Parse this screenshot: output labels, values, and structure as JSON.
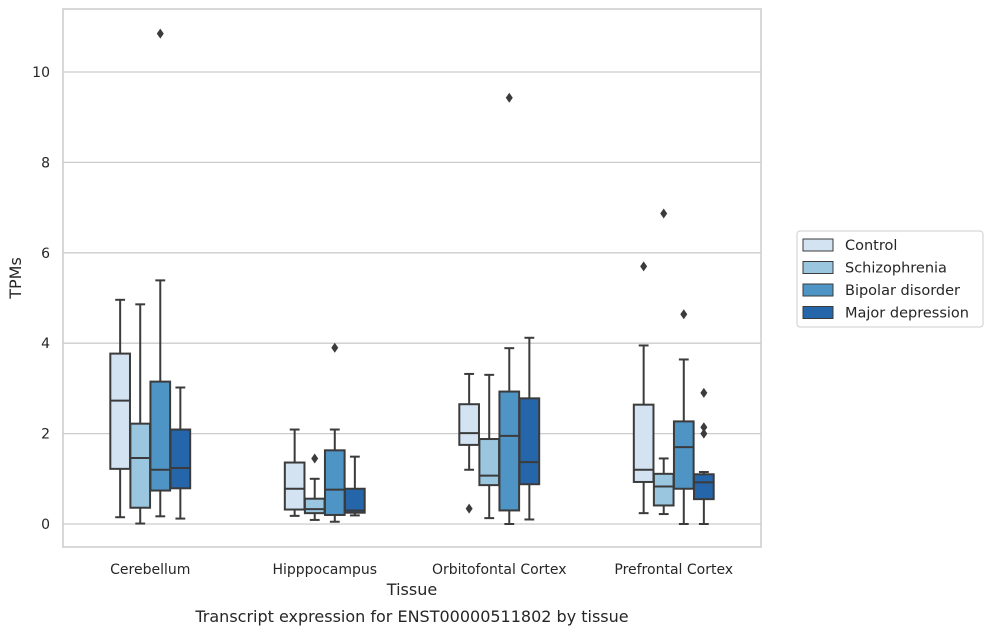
{
  "chart_data": {
    "type": "box",
    "caption": "Transcript expression for ENST00000511802 by tissue",
    "xlabel": "Tissue",
    "ylabel": "TPMs",
    "ylim": [
      -0.5,
      11.35
    ],
    "yticks": [
      0,
      2,
      4,
      6,
      8,
      10
    ],
    "grid": "y",
    "legend_position": "right",
    "categories": [
      "Cerebellum",
      "Hipppocampus",
      "Orbitofontal Cortex",
      "Prefrontal Cortex"
    ],
    "series": [
      {
        "name": "Control",
        "color": "#d3e3f2",
        "boxes": [
          {
            "whislo": 0.15,
            "q1": 1.22,
            "med": 2.73,
            "q3": 3.77,
            "whishi": 4.96,
            "fliers": []
          },
          {
            "whislo": 0.18,
            "q1": 0.32,
            "med": 0.78,
            "q3": 1.36,
            "whishi": 2.09,
            "fliers": []
          },
          {
            "whislo": 1.2,
            "q1": 1.75,
            "med": 2.01,
            "q3": 2.65,
            "whishi": 3.32,
            "fliers": [
              0.34
            ]
          },
          {
            "whislo": 0.24,
            "q1": 0.93,
            "med": 1.2,
            "q3": 2.64,
            "whishi": 3.95,
            "fliers": [
              5.7
            ]
          }
        ]
      },
      {
        "name": "Schizophrenia",
        "color": "#9ac6e0",
        "boxes": [
          {
            "whislo": 0.01,
            "q1": 0.36,
            "med": 1.46,
            "q3": 2.22,
            "whishi": 4.86,
            "fliers": []
          },
          {
            "whislo": 0.09,
            "q1": 0.24,
            "med": 0.33,
            "q3": 0.56,
            "whishi": 1.0,
            "fliers": [
              1.45
            ]
          },
          {
            "whislo": 0.13,
            "q1": 0.86,
            "med": 1.07,
            "q3": 1.88,
            "whishi": 3.3,
            "fliers": []
          },
          {
            "whislo": 0.22,
            "q1": 0.41,
            "med": 0.83,
            "q3": 1.11,
            "whishi": 1.45,
            "fliers": [
              6.87
            ]
          }
        ]
      },
      {
        "name": "Bipolar disorder",
        "color": "#4e95c6",
        "boxes": [
          {
            "whislo": 0.17,
            "q1": 0.74,
            "med": 1.2,
            "q3": 3.15,
            "whishi": 5.39,
            "fliers": [
              10.85
            ]
          },
          {
            "whislo": 0.05,
            "q1": 0.2,
            "med": 0.76,
            "q3": 1.63,
            "whishi": 2.09,
            "fliers": [
              3.9
            ]
          },
          {
            "whislo": 0.0,
            "q1": 0.3,
            "med": 1.95,
            "q3": 2.93,
            "whishi": 3.89,
            "fliers": [
              9.43
            ]
          },
          {
            "whislo": 0.0,
            "q1": 0.78,
            "med": 1.7,
            "q3": 2.27,
            "whishi": 3.64,
            "fliers": [
              4.64
            ]
          }
        ]
      },
      {
        "name": "Major depression",
        "color": "#2566aa",
        "boxes": [
          {
            "whislo": 0.12,
            "q1": 0.79,
            "med": 1.24,
            "q3": 2.09,
            "whishi": 3.02,
            "fliers": []
          },
          {
            "whislo": 0.19,
            "q1": 0.25,
            "med": 0.3,
            "q3": 0.78,
            "whishi": 1.49,
            "fliers": []
          },
          {
            "whislo": 0.1,
            "q1": 0.88,
            "med": 1.37,
            "q3": 2.78,
            "whishi": 4.12,
            "fliers": []
          },
          {
            "whislo": 0.0,
            "q1": 0.55,
            "med": 0.92,
            "q3": 1.1,
            "whishi": 1.15,
            "fliers": [
              2.0,
              2.14,
              2.9
            ]
          }
        ]
      }
    ]
  }
}
